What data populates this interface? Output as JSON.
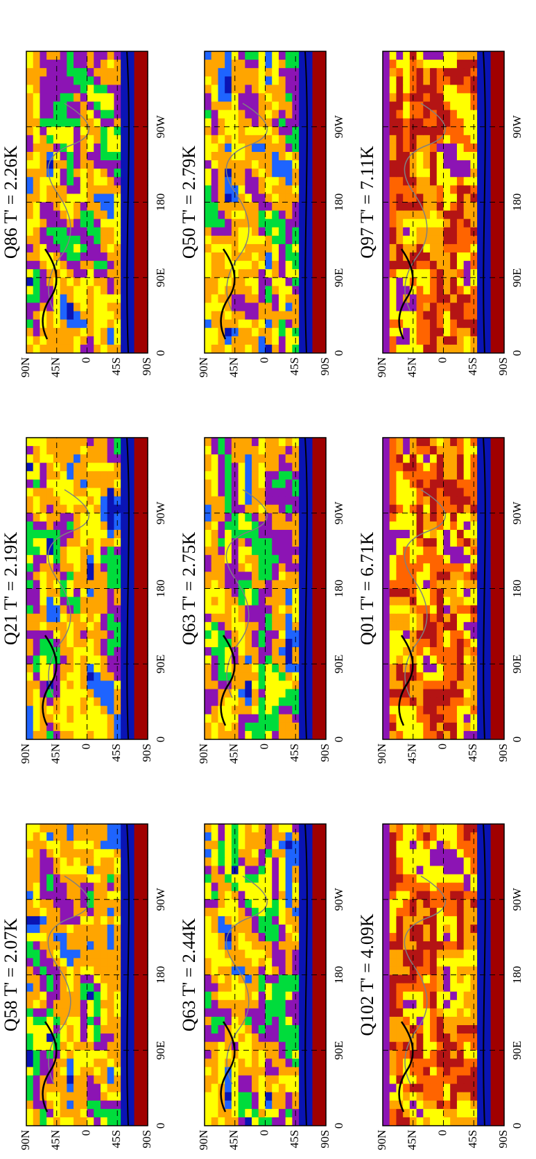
{
  "figure": {
    "panels": [
      {
        "title": "Q58   T' =  2.07K"
      },
      {
        "title": "Q21   T' =  2.19K"
      },
      {
        "title": "Q86   T' =  2.26K"
      },
      {
        "title": "Q63   T' =  2.44K"
      },
      {
        "title": "Q63   T' =  2.75K"
      },
      {
        "title": "Q50   T' =  2.79K"
      },
      {
        "title": "Q102   T' =  4.09K"
      },
      {
        "title": "Q01   T' =  6.71K"
      },
      {
        "title": "Q97   T' =  7.11K"
      }
    ],
    "lat_labels": [
      "90N",
      "45N",
      "0",
      "45S",
      "90S"
    ],
    "lon_labels": [
      "0",
      "90E",
      "180",
      "90W"
    ]
  }
}
